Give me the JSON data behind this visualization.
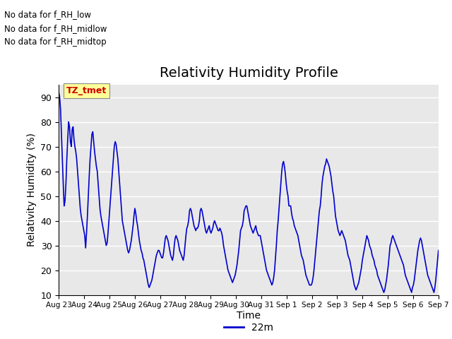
{
  "title": "Relativity Humidity Profile",
  "xlabel": "Time",
  "ylabel": "Relativity Humidity (%)",
  "ylim": [
    10,
    95
  ],
  "yticks": [
    10,
    20,
    30,
    40,
    50,
    60,
    70,
    80,
    90
  ],
  "line_color": "#0000cc",
  "line_width": 1.2,
  "legend_label": "22m",
  "no_data_texts": [
    "No data for f_RH_low",
    "No data for f_RH_midlow",
    "No data for f_RH_midtop"
  ],
  "tooltip_text": "TZ_tmet",
  "tooltip_color": "#cc0000",
  "tooltip_bg": "#ffff99",
  "background_color": "#e8e8e8",
  "x_tick_labels": [
    "Aug 23",
    "Aug 24",
    "Aug 25",
    "Aug 26",
    "Aug 27",
    "Aug 28",
    "Aug 29",
    "Aug 30",
    "Aug 31",
    "Sep 1",
    "Sep 2",
    "Sep 3",
    "Sep 4",
    "Sep 5",
    "Sep 6",
    "Sep 7"
  ],
  "y_data": [
    92,
    90,
    85,
    75,
    65,
    55,
    46,
    48,
    55,
    65,
    73,
    80,
    78,
    72,
    70,
    77,
    78,
    73,
    70,
    68,
    65,
    60,
    55,
    50,
    45,
    42,
    40,
    38,
    36,
    34,
    29,
    35,
    42,
    50,
    58,
    65,
    70,
    75,
    76,
    72,
    68,
    65,
    62,
    60,
    55,
    50,
    45,
    42,
    40,
    38,
    36,
    34,
    32,
    30,
    31,
    35,
    40,
    45,
    50,
    55,
    60,
    65,
    70,
    72,
    71,
    68,
    65,
    60,
    55,
    50,
    45,
    40,
    38,
    36,
    34,
    32,
    30,
    28,
    27,
    28,
    30,
    32,
    35,
    38,
    42,
    45,
    43,
    40,
    38,
    35,
    32,
    30,
    28,
    27,
    25,
    24,
    22,
    20,
    18,
    16,
    14,
    13,
    14,
    15,
    16,
    18,
    20,
    22,
    24,
    26,
    27,
    28,
    28,
    27,
    26,
    25,
    25,
    27,
    30,
    33,
    34,
    33,
    32,
    30,
    28,
    26,
    25,
    24,
    26,
    30,
    33,
    34,
    33,
    32,
    30,
    28,
    27,
    26,
    25,
    24,
    26,
    30,
    34,
    37,
    38,
    40,
    44,
    45,
    44,
    42,
    40,
    38,
    37,
    36,
    37,
    37,
    38,
    40,
    44,
    45,
    44,
    42,
    40,
    38,
    36,
    35,
    36,
    37,
    38,
    36,
    35,
    36,
    37,
    39,
    40,
    39,
    38,
    37,
    36,
    36,
    37,
    36,
    35,
    33,
    30,
    28,
    26,
    24,
    22,
    20,
    19,
    18,
    17,
    16,
    15,
    16,
    17,
    18,
    20,
    22,
    25,
    28,
    32,
    36,
    37,
    38,
    40,
    44,
    45,
    46,
    46,
    44,
    42,
    40,
    38,
    37,
    36,
    35,
    36,
    37,
    38,
    36,
    35,
    34,
    34,
    34,
    32,
    30,
    28,
    26,
    24,
    22,
    20,
    19,
    18,
    17,
    16,
    15,
    14,
    15,
    17,
    20,
    25,
    30,
    36,
    40,
    45,
    50,
    55,
    60,
    63,
    64,
    62,
    59,
    55,
    52,
    50,
    46,
    46,
    46,
    43,
    41,
    40,
    38,
    37,
    36,
    35,
    34,
    32,
    30,
    28,
    26,
    25,
    24,
    22,
    20,
    18,
    17,
    16,
    15,
    14,
    14,
    14,
    15,
    17,
    20,
    24,
    28,
    32,
    36,
    40,
    44,
    46,
    50,
    55,
    58,
    60,
    62,
    63,
    65,
    64,
    63,
    62,
    60,
    58,
    55,
    52,
    50,
    46,
    42,
    40,
    38,
    36,
    35,
    34,
    35,
    36,
    35,
    34,
    33,
    32,
    30,
    28,
    26,
    25,
    24,
    22,
    20,
    18,
    16,
    14,
    13,
    12,
    13,
    14,
    15,
    17,
    19,
    21,
    24,
    26,
    28,
    30,
    32,
    34,
    33,
    32,
    30,
    29,
    28,
    26,
    25,
    24,
    22,
    21,
    20,
    18,
    17,
    16,
    15,
    14,
    13,
    12,
    11,
    12,
    14,
    16,
    19,
    22,
    26,
    30,
    31,
    33,
    34,
    33,
    32,
    31,
    30,
    29,
    28,
    27,
    26,
    25,
    24,
    23,
    22,
    20,
    18,
    17,
    16,
    15,
    14,
    13,
    12,
    11,
    13,
    14,
    16,
    19,
    22,
    25,
    28,
    30,
    32,
    33,
    32,
    30,
    28,
    26,
    24,
    22,
    20,
    18,
    17,
    16,
    15,
    14,
    13,
    12,
    11,
    13,
    16,
    20,
    24,
    28
  ]
}
